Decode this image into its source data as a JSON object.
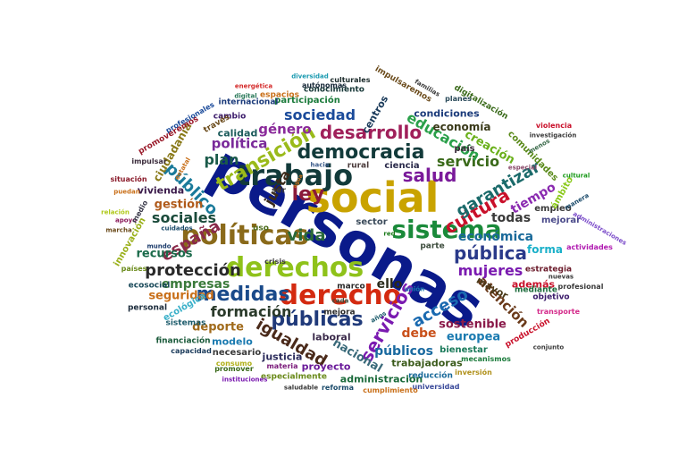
{
  "words": [
    {
      "text": "personas",
      "color": "#0a1a8a"
    },
    {
      "text": "social",
      "color": "#c9a300"
    },
    {
      "text": "trabajo",
      "color": "#123a3a"
    },
    {
      "text": "políticas",
      "color": "#8a6a1a"
    },
    {
      "text": "derechos",
      "color": "#8fc21a"
    },
    {
      "text": "derecho",
      "color": "#d42a10"
    },
    {
      "text": "sistema",
      "color": "#1a8a3a"
    },
    {
      "text": "democracia",
      "color": "#123a3a"
    },
    {
      "text": "transición",
      "color": "#9aba1a"
    },
    {
      "text": "desarrollo",
      "color": "#a0205a"
    },
    {
      "text": "ley",
      "color": "#8a1a3a"
    },
    {
      "text": "salud",
      "color": "#7a1a9a"
    },
    {
      "text": "cultura",
      "color": "#c9102a"
    },
    {
      "text": "servicios",
      "color": "#7a1ab0"
    },
    {
      "text": "públicas",
      "color": "#203a7a"
    },
    {
      "text": "medidas",
      "color": "#1a4a8a"
    },
    {
      "text": "protección",
      "color": "#2a2a2a"
    },
    {
      "text": "pública",
      "color": "#2a3a8a"
    },
    {
      "text": "garantizar",
      "color": "#1a6a6a"
    },
    {
      "text": "acceso",
      "color": "#1a6ab0"
    },
    {
      "text": "público",
      "color": "#1a7a9a"
    },
    {
      "text": "españa",
      "color": "#8a2a4a"
    },
    {
      "text": "vida",
      "color": "#2a6a3a"
    },
    {
      "text": "igualdad",
      "color": "#4a2a1a"
    },
    {
      "text": "formación",
      "color": "#2a3a2a"
    },
    {
      "text": "mujeres",
      "color": "#7a1ab0"
    },
    {
      "text": "servicio",
      "color": "#3a6a1a"
    },
    {
      "text": "sociedad",
      "color": "#1a4a9a"
    },
    {
      "text": "educación",
      "color": "#2aa04a"
    },
    {
      "text": "sociales",
      "color": "#1a4a3a"
    },
    {
      "text": "plan",
      "color": "#1a5a4a"
    },
    {
      "text": "política",
      "color": "#7a2a9a"
    },
    {
      "text": "género",
      "color": "#8a2a9a"
    },
    {
      "text": "justa",
      "color": "#3a2a1a"
    },
    {
      "text": "atención",
      "color": "#6a3a1a"
    },
    {
      "text": "económica",
      "color": "#1a6a9a"
    },
    {
      "text": "empresas",
      "color": "#3a7a3a"
    },
    {
      "text": "recursos",
      "color": "#1a6a4a"
    },
    {
      "text": "sostenible",
      "color": "#8a1a4a"
    },
    {
      "text": "debe",
      "color": "#c9501a"
    },
    {
      "text": "públicos",
      "color": "#1a6aa0"
    },
    {
      "text": "europea",
      "color": "#1a7ab0"
    },
    {
      "text": "nacional",
      "color": "#3a6a7a"
    },
    {
      "text": "ello",
      "color": "#2a2a1a"
    },
    {
      "text": "todas",
      "color": "#3a3a3a"
    },
    {
      "text": "tiempo",
      "color": "#8a2ab0"
    },
    {
      "text": "creación",
      "color": "#6ab01a"
    },
    {
      "text": "deporte",
      "color": "#a06a1a"
    },
    {
      "text": "seguridad",
      "color": "#c9701a"
    },
    {
      "text": "gestión",
      "color": "#b05a1a"
    },
    {
      "text": "vivienda",
      "color": "#3a1a4a"
    },
    {
      "text": "calidad",
      "color": "#1a5a5a"
    },
    {
      "text": "ciudadanía",
      "color": "#8a7a1a"
    },
    {
      "text": "centros",
      "color": "#1a3a5a"
    },
    {
      "text": "economía",
      "color": "#3a3a1a"
    },
    {
      "text": "condiciones",
      "color": "#1a3a7a"
    },
    {
      "text": "comunidades",
      "color": "#5a8a1a"
    },
    {
      "text": "además",
      "color": "#c9102a"
    },
    {
      "text": "forma",
      "color": "#1ab0c9"
    },
    {
      "text": "mayor",
      "color": "#4a3a1a"
    },
    {
      "text": "laboral",
      "color": "#3a2a4a"
    },
    {
      "text": "justicia",
      "color": "#2a2a5a"
    },
    {
      "text": "proyecto",
      "color": "#6a1a9a"
    },
    {
      "text": "bienestar",
      "color": "#1a7a5a"
    },
    {
      "text": "trabajadoras",
      "color": "#3a5a1a"
    },
    {
      "text": "administración",
      "color": "#1a6a3a"
    },
    {
      "text": "modelo",
      "color": "#1a7ab0"
    },
    {
      "text": "necesario",
      "color": "#3a3a3a"
    },
    {
      "text": "sector",
      "color": "#3a4a5a"
    },
    {
      "text": "empleo",
      "color": "#3a3a3a"
    },
    {
      "text": "mejorar",
      "color": "#4a4a8a"
    },
    {
      "text": "ecológica",
      "color": "#3ab0c9"
    },
    {
      "text": "innovación",
      "color": "#9ab01a"
    },
    {
      "text": "cambio",
      "color": "#3a1a6a"
    },
    {
      "text": "participación",
      "color": "#1a7a3a"
    },
    {
      "text": "internacional",
      "color": "#1a3a7a"
    },
    {
      "text": "conocimiento",
      "color": "#1a3a3a"
    },
    {
      "text": "impulsaremos",
      "color": "#6a4a1a"
    },
    {
      "text": "digitalización",
      "color": "#3a6a1a"
    },
    {
      "text": "ciencia",
      "color": "#2a2a4a"
    },
    {
      "text": "rural",
      "color": "#4a3a3a"
    },
    {
      "text": "país",
      "color": "#3a2a3a"
    },
    {
      "text": "ámbito",
      "color": "#8ac91a"
    },
    {
      "text": "estrategia",
      "color": "#6a1a2a"
    },
    {
      "text": "mediante",
      "color": "#1a6a3a"
    },
    {
      "text": "objetivo",
      "color": "#3a1a6a"
    },
    {
      "text": "producción",
      "color": "#c9102a"
    },
    {
      "text": "parte",
      "color": "#3a4a3a"
    },
    {
      "text": "uso",
      "color": "#4a6a1a"
    },
    {
      "text": "marco",
      "color": "#2a2a2a"
    },
    {
      "text": "mejora",
      "color": "#2a2a2a"
    },
    {
      "text": "ecosocial",
      "color": "#1a4a5a"
    },
    {
      "text": "personal",
      "color": "#1a2a3a"
    },
    {
      "text": "sistemas",
      "color": "#1a5a6a"
    },
    {
      "text": "financiación",
      "color": "#1a5a3a"
    },
    {
      "text": "capacidad",
      "color": "#1a3a5a"
    },
    {
      "text": "consumo",
      "color": "#b0b01a"
    },
    {
      "text": "materia",
      "color": "#7a1a7a"
    },
    {
      "text": "especialmente",
      "color": "#6a8a1a"
    },
    {
      "text": "reducción",
      "color": "#1a6a9a"
    },
    {
      "text": "mecanismos",
      "color": "#1a7a3a"
    },
    {
      "text": "inversión",
      "color": "#b0901a"
    },
    {
      "text": "universidad",
      "color": "#3a4a9a"
    },
    {
      "text": "cumplimiento",
      "color": "#c9701a"
    },
    {
      "text": "reforma",
      "color": "#1a4a6a"
    },
    {
      "text": "saludable",
      "color": "#3a3a3a"
    },
    {
      "text": "instituciones",
      "color": "#7a1ab0"
    },
    {
      "text": "promover",
      "color": "#3a6a1a"
    },
    {
      "text": "crisis",
      "color": "#3a3a3a"
    },
    {
      "text": "años",
      "color": "#1a5a6a"
    },
    {
      "text": "cada",
      "color": "#3a4a3a"
    },
    {
      "text": "unión",
      "color": "#1a7ab0"
    },
    {
      "text": "red",
      "color": "#1a7a1a"
    },
    {
      "text": "transporte",
      "color": "#d42a8a"
    },
    {
      "text": "profesional",
      "color": "#3a3a3a"
    },
    {
      "text": "nuevas",
      "color": "#3a3a3a"
    },
    {
      "text": "conjunto",
      "color": "#3a3a3a"
    },
    {
      "text": "actividades",
      "color": "#b01ab0"
    },
    {
      "text": "administraciones",
      "color": "#7a4ac9"
    },
    {
      "text": "manera",
      "color": "#1a4a6a"
    },
    {
      "text": "cultural",
      "color": "#1a9a1a"
    },
    {
      "text": "menos",
      "color": "#3a6a4a"
    },
    {
      "text": "investigación",
      "color": "#3a3a3a"
    },
    {
      "text": "violencia",
      "color": "#c9102a"
    },
    {
      "text": "especial",
      "color": "#8a4a6a"
    },
    {
      "text": "planes",
      "color": "#2a4a5a"
    },
    {
      "text": "familias",
      "color": "#3a3a3a"
    },
    {
      "text": "culturales",
      "color": "#1a2a2a"
    },
    {
      "text": "diversidad",
      "color": "#1a9ab0"
    },
    {
      "text": "energética",
      "color": "#d42a2a"
    },
    {
      "text": "autónomas",
      "color": "#1a2a3a"
    },
    {
      "text": "digital",
      "color": "#2a7a5a"
    },
    {
      "text": "espacios",
      "color": "#c9701a"
    },
    {
      "text": "profesionales",
      "color": "#1a4a9a"
    },
    {
      "text": "través",
      "color": "#6a4a1a"
    },
    {
      "text": "promoveremos",
      "color": "#9a1a2a"
    },
    {
      "text": "impulsar",
      "color": "#3a2a3a"
    },
    {
      "text": "estatal",
      "color": "#c9701a"
    },
    {
      "text": "situación",
      "color": "#8a1a2a"
    },
    {
      "text": "puedan",
      "color": "#c9701a"
    },
    {
      "text": "relación",
      "color": "#b0c91a"
    },
    {
      "text": "apoyo",
      "color": "#8a1a5a"
    },
    {
      "text": "marcha",
      "color": "#6a4a1a"
    },
    {
      "text": "cuidados",
      "color": "#1a4a6a"
    },
    {
      "text": "mundo",
      "color": "#1a3a6a"
    },
    {
      "text": "medio",
      "color": "#3a3a4a"
    },
    {
      "text": "países",
      "color": "#6a8a1a"
    },
    {
      "text": "hacia",
      "color": "#3a5a8a"
    },
    {
      "text": "ser",
      "color": "#3a3a3a"
    },
    {
      "text": "agua",
      "color": "#c9701a"
    }
  ]
}
